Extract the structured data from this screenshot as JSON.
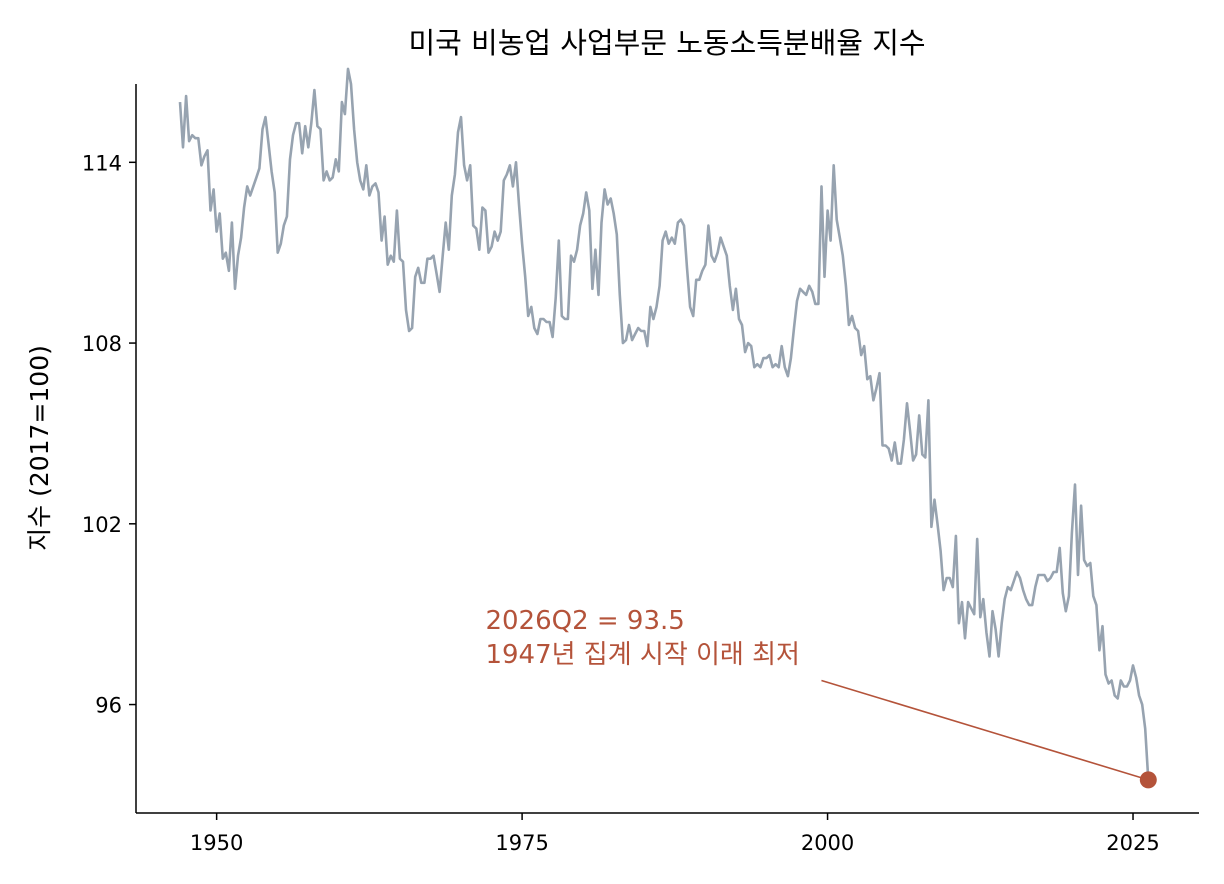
{
  "chart_data": {
    "type": "line",
    "title": "미국 비농업 사업부문 노동소득분배율 지수",
    "xlabel": "",
    "ylabel": "지수 (2017=100)",
    "xlim": [
      1943.4,
      2030.4
    ],
    "ylim": [
      92.4,
      116.6
    ],
    "xticks": [
      1950,
      1975,
      2000,
      2025
    ],
    "yticks": [
      96,
      102,
      108,
      114
    ],
    "line_color": "#97a3b0",
    "accent_color": "#b4533a",
    "series": [
      {
        "x": [
          1947.0,
          1947.25,
          1947.5,
          1947.75,
          1948.0,
          1948.25,
          1948.5,
          1948.75,
          1949.0,
          1949.25,
          1949.5,
          1949.75,
          1950.0,
          1950.25,
          1950.5,
          1950.75,
          1951.0,
          1951.25,
          1951.5,
          1951.75,
          1952.0,
          1952.25,
          1952.5,
          1952.75,
          1953.0,
          1953.25,
          1953.5,
          1953.75,
          1954.0,
          1954.25,
          1954.5,
          1954.75,
          1955.0,
          1955.25,
          1955.5,
          1955.75,
          1956.0,
          1956.25,
          1956.5,
          1956.75,
          1957.0,
          1957.25,
          1957.5,
          1957.75,
          1958.0,
          1958.25,
          1958.5,
          1958.75,
          1959.0,
          1959.25,
          1959.5,
          1959.75,
          1960.0,
          1960.25,
          1960.5,
          1960.75,
          1961.0,
          1961.25,
          1961.5,
          1961.75,
          1962.0,
          1962.25,
          1962.5,
          1962.75,
          1963.0,
          1963.25,
          1963.5,
          1963.75,
          1964.0,
          1964.25,
          1964.5,
          1964.75,
          1965.0,
          1965.25,
          1965.5,
          1965.75,
          1966.0,
          1966.25,
          1966.5,
          1966.75,
          1967.0,
          1967.25,
          1967.5,
          1967.75,
          1968.0,
          1968.25,
          1968.5,
          1968.75,
          1969.0,
          1969.25,
          1969.5,
          1969.75,
          1970.0,
          1970.25,
          1970.5,
          1970.75,
          1971.0,
          1971.25,
          1971.5,
          1971.75,
          1972.0,
          1972.25,
          1972.5,
          1972.75,
          1973.0,
          1973.25,
          1973.5,
          1973.75,
          1974.0,
          1974.25,
          1974.5,
          1974.75,
          1975.0,
          1975.25,
          1975.5,
          1975.75,
          1976.0,
          1976.25,
          1976.5,
          1976.75,
          1977.0,
          1977.25,
          1977.5,
          1977.75,
          1978.0,
          1978.25,
          1978.5,
          1978.75,
          1979.0,
          1979.25,
          1979.5,
          1979.75,
          1980.0,
          1980.25,
          1980.5,
          1980.75,
          1981.0,
          1981.25,
          1981.5,
          1981.75,
          1982.0,
          1982.25,
          1982.5,
          1982.75,
          1983.0,
          1983.25,
          1983.5,
          1983.75,
          1984.0,
          1984.25,
          1984.5,
          1984.75,
          1985.0,
          1985.25,
          1985.5,
          1985.75,
          1986.0,
          1986.25,
          1986.5,
          1986.75,
          1987.0,
          1987.25,
          1987.5,
          1987.75,
          1988.0,
          1988.25,
          1988.5,
          1988.75,
          1989.0,
          1989.25,
          1989.5,
          1989.75,
          1990.0,
          1990.25,
          1990.5,
          1990.75,
          1991.0,
          1991.25,
          1991.5,
          1991.75,
          1992.0,
          1992.25,
          1992.5,
          1992.75,
          1993.0,
          1993.25,
          1993.5,
          1993.75,
          1994.0,
          1994.25,
          1994.5,
          1994.75,
          1995.0,
          1995.25,
          1995.5,
          1995.75,
          1996.0,
          1996.25,
          1996.5,
          1996.75,
          1997.0,
          1997.25,
          1997.5,
          1997.75,
          1998.0,
          1998.25,
          1998.5,
          1998.75,
          1999.0,
          1999.25,
          1999.5,
          1999.75,
          2000.0,
          2000.25,
          2000.5,
          2000.75,
          2001.0,
          2001.25,
          2001.5,
          2001.75,
          2002.0,
          2002.25,
          2002.5,
          2002.75,
          2003.0,
          2003.25,
          2003.5,
          2003.75,
          2004.0,
          2004.25,
          2004.5,
          2004.75,
          2005.0,
          2005.25,
          2005.5,
          2005.75,
          2006.0,
          2006.25,
          2006.5,
          2006.75,
          2007.0,
          2007.25,
          2007.5,
          2007.75,
          2008.0,
          2008.25,
          2008.5,
          2008.75,
          2009.0,
          2009.25,
          2009.5,
          2009.75,
          2010.0,
          2010.25,
          2010.5,
          2010.75,
          2011.0,
          2011.25,
          2011.5,
          2011.75,
          2012.0,
          2012.25,
          2012.5,
          2012.75,
          2013.0,
          2013.25,
          2013.5,
          2013.75,
          2014.0,
          2014.25,
          2014.5,
          2014.75,
          2015.0,
          2015.25,
          2015.5,
          2015.75,
          2016.0,
          2016.25,
          2016.5,
          2016.75,
          2017.0,
          2017.25,
          2017.5,
          2017.75,
          2018.0,
          2018.25,
          2018.5,
          2018.75,
          2019.0,
          2019.25,
          2019.5,
          2019.75,
          2020.0,
          2020.25,
          2020.5,
          2020.75,
          2021.0,
          2021.25,
          2021.5,
          2021.75,
          2022.0,
          2022.25,
          2022.5,
          2022.75,
          2023.0,
          2023.25,
          2023.5,
          2023.75,
          2024.0,
          2024.25,
          2024.5,
          2024.75,
          2025.0,
          2025.25,
          2025.5,
          2025.75,
          2026.0,
          2026.25
        ],
        "values": [
          116.0,
          114.5,
          116.2,
          114.7,
          114.9,
          114.8,
          114.8,
          113.9,
          114.2,
          114.4,
          112.4,
          113.1,
          111.7,
          112.3,
          110.8,
          111.0,
          110.4,
          112.0,
          109.8,
          110.9,
          111.5,
          112.5,
          113.2,
          112.9,
          113.2,
          113.5,
          113.8,
          115.1,
          115.5,
          114.6,
          113.7,
          113.0,
          111.0,
          111.3,
          111.9,
          112.2,
          114.1,
          114.9,
          115.3,
          115.3,
          114.3,
          115.2,
          114.5,
          115.3,
          116.4,
          115.2,
          115.1,
          113.4,
          113.7,
          113.4,
          113.5,
          114.1,
          113.7,
          116.0,
          115.6,
          117.1,
          116.6,
          115.1,
          114.0,
          113.4,
          113.1,
          113.9,
          112.9,
          113.2,
          113.3,
          113.0,
          111.4,
          112.2,
          110.6,
          110.9,
          110.7,
          112.4,
          110.8,
          110.7,
          109.1,
          108.4,
          108.5,
          110.2,
          110.5,
          110.0,
          110.0,
          110.8,
          110.8,
          110.9,
          110.3,
          109.7,
          110.9,
          112.0,
          111.1,
          112.9,
          113.6,
          115.0,
          115.5,
          113.9,
          113.4,
          113.9,
          111.9,
          111.8,
          111.1,
          112.5,
          112.4,
          111.0,
          111.2,
          111.7,
          111.4,
          111.7,
          113.4,
          113.6,
          113.9,
          113.2,
          114.0,
          112.6,
          111.3,
          110.2,
          108.9,
          109.2,
          108.5,
          108.3,
          108.8,
          108.8,
          108.7,
          108.7,
          108.2,
          109.5,
          111.4,
          108.9,
          108.8,
          108.8,
          110.9,
          110.7,
          111.1,
          111.9,
          112.3,
          113.0,
          112.4,
          109.8,
          111.1,
          109.6,
          112.0,
          113.1,
          112.6,
          112.8,
          112.3,
          111.6,
          109.6,
          108.0,
          108.1,
          108.6,
          108.1,
          108.3,
          108.5,
          108.4,
          108.4,
          107.9,
          109.2,
          108.8,
          109.2,
          109.9,
          111.4,
          111.7,
          111.3,
          111.5,
          111.3,
          112.0,
          112.1,
          111.9,
          110.5,
          109.2,
          108.9,
          110.1,
          110.1,
          110.4,
          110.6,
          111.9,
          110.9,
          110.7,
          111.0,
          111.5,
          111.2,
          110.9,
          109.9,
          109.1,
          109.8,
          108.8,
          108.6,
          107.7,
          108.0,
          107.9,
          107.2,
          107.3,
          107.2,
          107.5,
          107.5,
          107.6,
          107.2,
          107.3,
          107.2,
          107.9,
          107.2,
          106.9,
          107.5,
          108.5,
          109.4,
          109.8,
          109.7,
          109.6,
          109.9,
          109.7,
          109.3,
          109.3,
          113.2,
          110.2,
          112.4,
          111.4,
          113.9,
          112.1,
          111.5,
          110.9,
          109.9,
          108.6,
          108.9,
          108.5,
          108.4,
          107.6,
          107.9,
          106.8,
          106.9,
          106.1,
          106.5,
          107.0,
          104.6,
          104.6,
          104.5,
          104.1,
          104.7,
          104.0,
          104.0,
          104.8,
          106.0,
          105.1,
          104.1,
          104.3,
          105.6,
          104.3,
          104.2,
          106.1,
          101.9,
          102.8,
          102.0,
          101.1,
          99.8,
          100.2,
          100.2,
          99.9,
          101.6,
          98.7,
          99.4,
          98.2,
          99.4,
          99.2,
          99.0,
          101.5,
          98.9,
          99.5,
          98.4,
          97.6,
          99.1,
          98.5,
          97.6,
          98.7,
          99.5,
          99.9,
          99.8,
          100.1,
          100.4,
          100.2,
          99.8,
          99.5,
          99.3,
          99.3,
          99.9,
          100.3,
          100.3,
          100.3,
          100.1,
          100.2,
          100.4,
          100.4,
          101.2,
          99.7,
          99.1,
          99.6,
          101.7,
          103.3,
          100.3,
          102.6,
          100.8,
          100.6,
          100.7,
          99.6,
          99.3,
          97.8,
          98.6,
          97.0,
          96.7,
          96.8,
          96.3,
          96.2,
          96.8,
          96.6,
          96.6,
          96.8,
          97.3,
          96.9,
          96.3,
          96.0,
          95.2,
          93.5
        ]
      }
    ],
    "annotation": {
      "lines": [
        "2026Q2 = 93.5",
        "1947년 집계 시작 이래 최저"
      ],
      "point": {
        "x": 2026.25,
        "y": 93.5
      },
      "text_anchor": {
        "x": 1972.0,
        "y": 98.5
      },
      "arrow_from": {
        "x": 1999.5,
        "y": 96.8
      }
    }
  }
}
